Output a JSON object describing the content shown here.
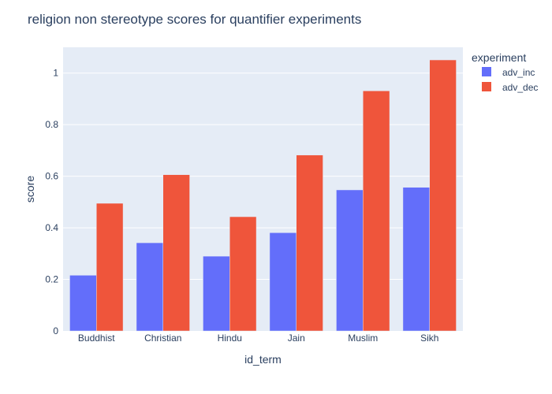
{
  "chart_data": {
    "type": "bar",
    "title": "religion non stereotype scores for quantifier experiments",
    "xlabel": "id_term",
    "ylabel": "score",
    "categories": [
      "Buddhist",
      "Christian",
      "Hindu",
      "Jain",
      "Muslim",
      "Sikh"
    ],
    "series": [
      {
        "name": "adv_inc",
        "color": "#636efa",
        "values": [
          0.216,
          0.342,
          0.29,
          0.381,
          0.547,
          0.557
        ]
      },
      {
        "name": "adv_dec",
        "color": "#ef553b",
        "values": [
          0.495,
          0.606,
          0.443,
          0.682,
          0.931,
          1.051
        ]
      }
    ],
    "ylim": [
      0,
      1.1
    ],
    "yticks": [
      0,
      0.2,
      0.4,
      0.6,
      0.8,
      1
    ],
    "ytick_labels": [
      "0",
      "0.2",
      "0.4",
      "0.6",
      "0.8",
      "1"
    ],
    "grid": true,
    "legend": {
      "title": "experiment",
      "position": "top-right"
    },
    "colors": {
      "plot_background": "#e5ecf6",
      "grid": "#ffffff",
      "text": "#2a3f5f"
    }
  }
}
